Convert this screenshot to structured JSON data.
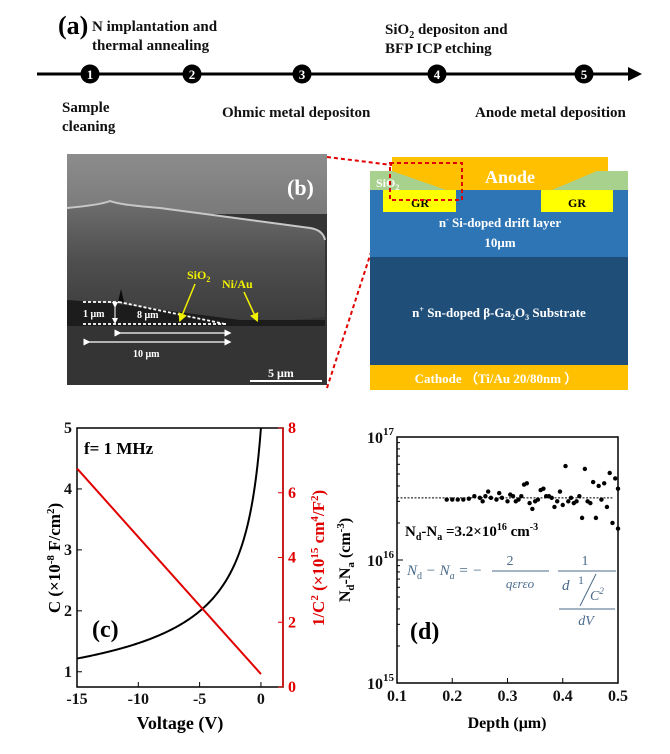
{
  "panel_a": {
    "label": "(a)",
    "steps": [
      {
        "num": "1",
        "below": [
          "Sample",
          "cleaning"
        ]
      },
      {
        "num": "2",
        "above": [
          "N implantation and",
          "thermal annealing"
        ]
      },
      {
        "num": "3",
        "below": [
          "Ohmic metal depositon"
        ]
      },
      {
        "num": "4",
        "above_parts": {
          "pre": "SiO",
          "sub": "2",
          "post": " depositon and"
        },
        "above2": "BFP ICP etching"
      },
      {
        "num": "5",
        "below": [
          "Anode metal deposition"
        ]
      }
    ]
  },
  "panel_b": {
    "label": "(b)",
    "sem": {
      "sio2": "SiO",
      "sio2_sub": "2",
      "niau": "Ni/Au",
      "h": "1 μm",
      "w8": "8 μm",
      "w10": "10 μm",
      "scale": "5 μm"
    },
    "schematic": {
      "anode": "Anode",
      "sio2": "SiO",
      "sio2_sub": "2",
      "gr_left": "GR",
      "gr_right": "GR",
      "drift_pre": "n",
      "drift_sup": "-",
      "drift_post": " Si-doped drift layer",
      "drift_thickness": "10μm",
      "sub_pre": "n",
      "sub_sup": "+",
      "sub_mid": " Sn-doped β-Ga",
      "sub_s1": "2",
      "sub_o": "O",
      "sub_s2": "3",
      "sub_post": " Substrate",
      "cathode": "Cathode （Ti/Au 20/80nm ）"
    },
    "colors": {
      "anode": "#ffc000",
      "sio2": "#a9d18e",
      "gr": "#ffff00",
      "drift": "#2e75b6",
      "substrate": "#1f4e79",
      "cathode": "#ffc000",
      "callout": "#e00000"
    }
  },
  "chart_data": [
    {
      "type": "line",
      "panel_label": "(c)",
      "annotation": "f= 1 MHz",
      "xlabel": "Voltage (V)",
      "ylabel_left": {
        "pre": "C (×10",
        "sup": "-8",
        "post": " F/cm",
        "sup2": "2",
        "end": ")"
      },
      "ylabel_right": {
        "pre": "1/C",
        "sup": "2",
        "mid": " (×10",
        "sup2": "15",
        "mid2": " cm",
        "sup3": "4",
        "mid3": "/F",
        "sup4": "2",
        "end": ")"
      },
      "xlim": [
        -15,
        1.8
      ],
      "ylim_left": [
        0.75,
        5
      ],
      "ylim_right": [
        0,
        8
      ],
      "xticks": [
        "-15",
        "-10",
        "-5",
        "0"
      ],
      "xtick_values": [
        -15,
        -10,
        -5,
        0
      ],
      "yticks_left": [
        "1",
        "2",
        "3",
        "4",
        "5"
      ],
      "yticks_right": [
        "0",
        "2",
        "4",
        "6",
        "8"
      ],
      "series": [
        {
          "name": "C",
          "axis": "left",
          "color": "#000000",
          "x": [
            -15,
            -12,
            -10,
            -8,
            -6,
            -5,
            -4,
            -3,
            -2,
            -1.5,
            -1,
            -0.5,
            -0.2,
            0
          ],
          "y": [
            1.22,
            1.35,
            1.47,
            1.62,
            1.84,
            1.99,
            2.19,
            2.45,
            2.83,
            3.1,
            3.49,
            4.05,
            4.55,
            4.95
          ]
        },
        {
          "name": "1/C^2",
          "axis": "right",
          "color": "#e00000",
          "x": [
            -15,
            0
          ],
          "y": [
            6.75,
            0.4
          ]
        }
      ]
    },
    {
      "type": "scatter",
      "panel_label": "(d)",
      "xlabel": "Depth (μm)",
      "ylabel": {
        "pre": "N",
        "s1": "d",
        "mid": "-N",
        "s2": "a",
        "mid2": " (cm",
        "sup": "-3",
        "end": ")"
      },
      "xlim": [
        0.1,
        0.5
      ],
      "ylim": [
        1000000000000000.0,
        1e+17
      ],
      "yscale": "log",
      "xticks": [
        "0.1",
        "0.2",
        "0.3",
        "0.4",
        "0.5"
      ],
      "xtick_values": [
        0.1,
        0.2,
        0.3,
        0.4,
        0.5
      ],
      "yticks": [
        {
          "base": "10",
          "exp": "15"
        },
        {
          "base": "10",
          "exp": "16"
        },
        {
          "base": "10",
          "exp": "17"
        }
      ],
      "fit_line": 3.2e+16,
      "annotation": {
        "pre": "N",
        "s1": "d",
        "mid": "-N",
        "s2": "a",
        "mid2": " =3.2×10",
        "sup": "16",
        "mid3": " cm",
        "sup2": "-3"
      },
      "equation": {
        "lhs": "N",
        "lhs_s": "d",
        "minus": " − N",
        "lhs_s2": "a",
        "eq": " = −",
        "num1": "2",
        "den1": "qεrεo",
        "num2": "1",
        "d": "d",
        "one": "1",
        "c2": "C",
        "c2sup": "2",
        "dv": "dV"
      },
      "points_depth": [
        0.19,
        0.2,
        0.21,
        0.22,
        0.23,
        0.24,
        0.25,
        0.255,
        0.26,
        0.265,
        0.27,
        0.28,
        0.285,
        0.29,
        0.3,
        0.305,
        0.31,
        0.315,
        0.32,
        0.325,
        0.33,
        0.335,
        0.34,
        0.345,
        0.35,
        0.355,
        0.36,
        0.365,
        0.37,
        0.375,
        0.38,
        0.385,
        0.39,
        0.395,
        0.4,
        0.405,
        0.41,
        0.415,
        0.42,
        0.425,
        0.43,
        0.435,
        0.44,
        0.445,
        0.45,
        0.455,
        0.46,
        0.465,
        0.47,
        0.475,
        0.48,
        0.485,
        0.49,
        0.495,
        0.5,
        0.5
      ],
      "points_conc": [
        3.1e+16,
        3.1e+16,
        3.1e+16,
        3.1e+16,
        3.15e+16,
        3.3e+16,
        3.2e+16,
        3e+16,
        3.3e+16,
        3.6e+16,
        3.2e+16,
        3.1e+16,
        3.5e+16,
        3.2e+16,
        3e+16,
        3.4e+16,
        3.3e+16,
        3e+16,
        3.1e+16,
        3.3e+16,
        4.1e+16,
        4.2e+16,
        2.9e+16,
        2.6e+16,
        3e+16,
        3.1e+16,
        3.7e+16,
        3.8e+16,
        3.3e+16,
        3.3e+16,
        3.2e+16,
        2.7e+16,
        3e+16,
        3.6e+16,
        2.8e+16,
        5.8e+16,
        3e+16,
        3.2e+16,
        2.9e+16,
        3e+16,
        3.3e+16,
        2.2e+16,
        5.5e+16,
        3e+16,
        2.9e+16,
        4.3e+16,
        2.2e+16,
        4e+16,
        3.1e+16,
        4.2e+16,
        2.7e+16,
        5.1e+16,
        2e+16,
        4.6e+16,
        3.8e+16,
        1.8e+16
      ]
    }
  ]
}
